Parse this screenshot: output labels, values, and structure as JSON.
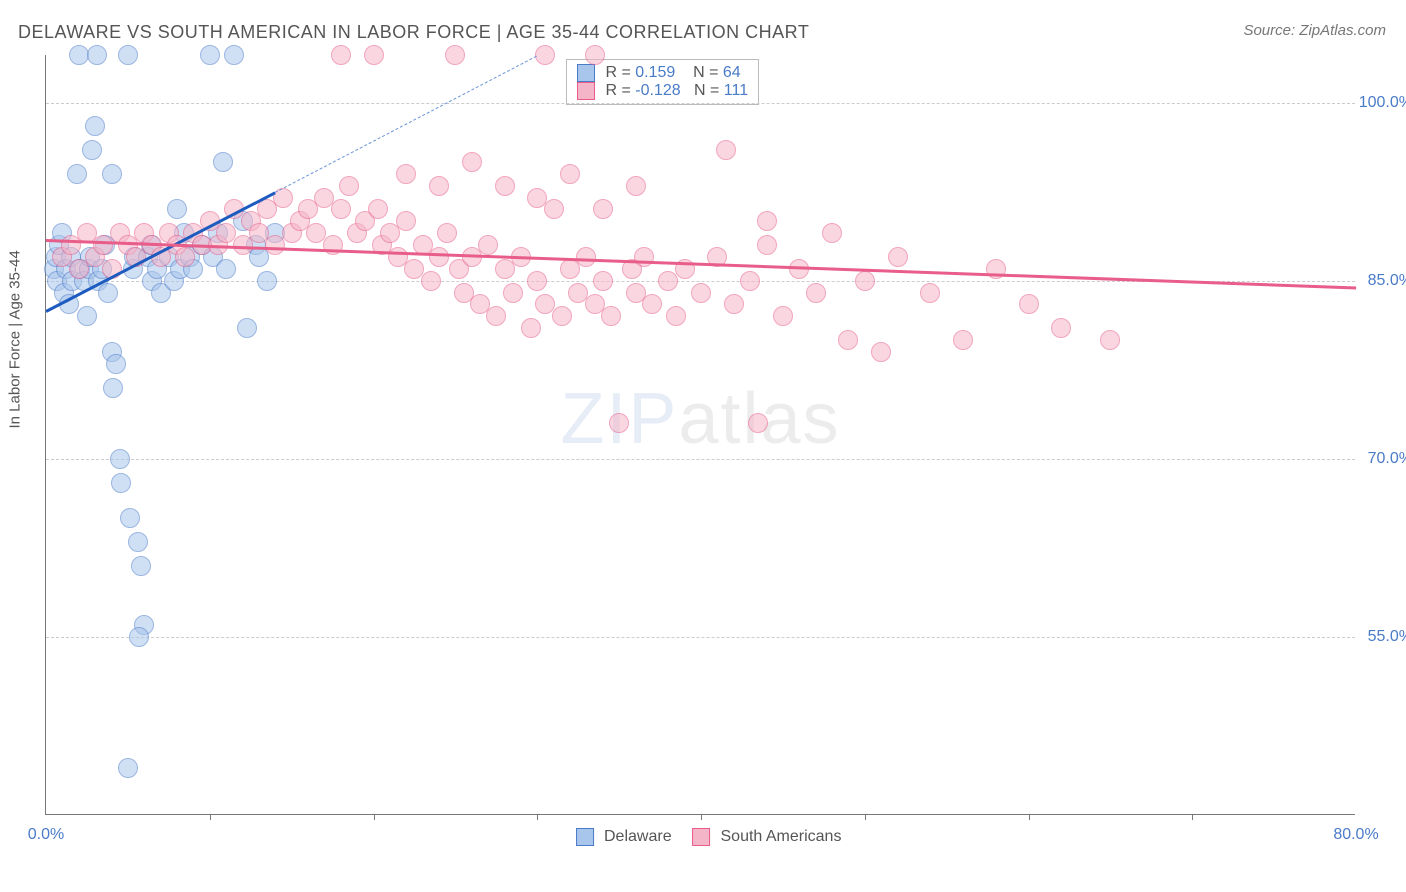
{
  "title": "DELAWARE VS SOUTH AMERICAN IN LABOR FORCE | AGE 35-44 CORRELATION CHART",
  "source": "Source: ZipAtlas.com",
  "ylabel": "In Labor Force | Age 35-44",
  "watermark_bold": "ZIP",
  "watermark_thin": "atlas",
  "chart": {
    "type": "scatter",
    "background_color": "#ffffff",
    "grid_color": "#cccccc",
    "grid_dash": "4,4",
    "axis_color": "#777777",
    "tick_label_color": "#4a7bc8",
    "tick_fontsize": 16,
    "xlim": [
      0,
      80
    ],
    "ylim": [
      40,
      104
    ],
    "xticks": [
      0,
      80
    ],
    "xticks_minor": [
      10,
      20,
      30,
      40,
      50,
      60,
      70
    ],
    "yticks": [
      55,
      70,
      85,
      100
    ],
    "ytick_labels": [
      "55.0%",
      "70.0%",
      "85.0%",
      "100.0%"
    ],
    "xtick_labels": [
      "0.0%",
      "80.0%"
    ],
    "marker_radius": 10,
    "marker_opacity": 0.55,
    "series": [
      {
        "name": "Delaware",
        "fill": "#a8c5ec",
        "stroke": "#4a7bc8",
        "r_value": "0.159",
        "n_value": "64",
        "trend": {
          "x1": 0,
          "y1": 82.5,
          "x2": 14,
          "y2": 92.5,
          "color": "#1e5bbf",
          "width": 3,
          "dash": "none"
        },
        "trend_ext": {
          "x1": 14,
          "y1": 92.5,
          "x2": 30,
          "y2": 104,
          "color": "#6a96d8",
          "width": 1.5,
          "dash": "6,5"
        },
        "points": [
          [
            0.5,
            86
          ],
          [
            0.6,
            87
          ],
          [
            0.7,
            85
          ],
          [
            0.8,
            88
          ],
          [
            1.0,
            89
          ],
          [
            1.1,
            84
          ],
          [
            1.2,
            86
          ],
          [
            1.4,
            83
          ],
          [
            1.5,
            87
          ],
          [
            1.6,
            85
          ],
          [
            1.9,
            94
          ],
          [
            2.0,
            104
          ],
          [
            2.1,
            86
          ],
          [
            2.3,
            85
          ],
          [
            2.5,
            82
          ],
          [
            2.6,
            86
          ],
          [
            2.7,
            87
          ],
          [
            3.0,
            98
          ],
          [
            3.1,
            104
          ],
          [
            3.2,
            85
          ],
          [
            3.4,
            86
          ],
          [
            3.6,
            88
          ],
          [
            3.8,
            84
          ],
          [
            4.0,
            79
          ],
          [
            4.1,
            76
          ],
          [
            4.3,
            78
          ],
          [
            4.5,
            70
          ],
          [
            4.6,
            68
          ],
          [
            5.0,
            104
          ],
          [
            5.1,
            65
          ],
          [
            5.3,
            86
          ],
          [
            5.4,
            87
          ],
          [
            5.6,
            63
          ],
          [
            5.8,
            61
          ],
          [
            6.0,
            56
          ],
          [
            6.2,
            87
          ],
          [
            6.4,
            88
          ],
          [
            6.5,
            85
          ],
          [
            6.8,
            86
          ],
          [
            7.0,
            84
          ],
          [
            7.5,
            87
          ],
          [
            7.8,
            85
          ],
          [
            8.0,
            91
          ],
          [
            8.2,
            86
          ],
          [
            8.4,
            89
          ],
          [
            8.8,
            87
          ],
          [
            9.0,
            86
          ],
          [
            9.5,
            88
          ],
          [
            10.0,
            104
          ],
          [
            10.2,
            87
          ],
          [
            10.5,
            89
          ],
          [
            10.8,
            95
          ],
          [
            11.0,
            86
          ],
          [
            11.5,
            104
          ],
          [
            12.0,
            90
          ],
          [
            12.3,
            81
          ],
          [
            12.8,
            88
          ],
          [
            13.0,
            87
          ],
          [
            13.5,
            85
          ],
          [
            14.0,
            89
          ],
          [
            5.0,
            44
          ],
          [
            5.7,
            55
          ],
          [
            4.0,
            94
          ],
          [
            2.8,
            96
          ]
        ]
      },
      {
        "name": "South Americans",
        "fill": "#f5b5c8",
        "stroke": "#e85d8a",
        "r_value": "-0.128",
        "n_value": "111",
        "trend": {
          "x1": 0,
          "y1": 88.5,
          "x2": 80,
          "y2": 84.5,
          "color": "#e85d8a",
          "width": 3,
          "dash": "none"
        },
        "points": [
          [
            1.0,
            87
          ],
          [
            1.5,
            88
          ],
          [
            2.0,
            86
          ],
          [
            2.5,
            89
          ],
          [
            3.0,
            87
          ],
          [
            3.5,
            88
          ],
          [
            4.0,
            86
          ],
          [
            4.5,
            89
          ],
          [
            5.0,
            88
          ],
          [
            5.5,
            87
          ],
          [
            6.0,
            89
          ],
          [
            6.5,
            88
          ],
          [
            7.0,
            87
          ],
          [
            7.5,
            89
          ],
          [
            8.0,
            88
          ],
          [
            8.5,
            87
          ],
          [
            9.0,
            89
          ],
          [
            9.5,
            88
          ],
          [
            10.0,
            90
          ],
          [
            10.5,
            88
          ],
          [
            11.0,
            89
          ],
          [
            11.5,
            91
          ],
          [
            12.0,
            88
          ],
          [
            12.5,
            90
          ],
          [
            13.0,
            89
          ],
          [
            13.5,
            91
          ],
          [
            14.0,
            88
          ],
          [
            14.5,
            92
          ],
          [
            15.0,
            89
          ],
          [
            15.5,
            90
          ],
          [
            16.0,
            91
          ],
          [
            16.5,
            89
          ],
          [
            17.0,
            92
          ],
          [
            17.5,
            88
          ],
          [
            18.0,
            91
          ],
          [
            18.5,
            93
          ],
          [
            19.0,
            89
          ],
          [
            19.5,
            90
          ],
          [
            20.0,
            104
          ],
          [
            20.3,
            91
          ],
          [
            20.5,
            88
          ],
          [
            21.0,
            89
          ],
          [
            21.5,
            87
          ],
          [
            22.0,
            90
          ],
          [
            22.5,
            86
          ],
          [
            23.0,
            88
          ],
          [
            23.5,
            85
          ],
          [
            24.0,
            87
          ],
          [
            24.5,
            89
          ],
          [
            25.0,
            104
          ],
          [
            25.2,
            86
          ],
          [
            25.5,
            84
          ],
          [
            26.0,
            87
          ],
          [
            26.5,
            83
          ],
          [
            27.0,
            88
          ],
          [
            27.5,
            82
          ],
          [
            28.0,
            86
          ],
          [
            28.5,
            84
          ],
          [
            29.0,
            87
          ],
          [
            29.6,
            81
          ],
          [
            30.0,
            85
          ],
          [
            30.5,
            83
          ],
          [
            31.0,
            91
          ],
          [
            31.5,
            82
          ],
          [
            32.0,
            86
          ],
          [
            32.5,
            84
          ],
          [
            33.0,
            87
          ],
          [
            33.5,
            83
          ],
          [
            34.0,
            85
          ],
          [
            34.5,
            82
          ],
          [
            35.0,
            73
          ],
          [
            35.8,
            86
          ],
          [
            36.0,
            84
          ],
          [
            36.5,
            87
          ],
          [
            37.0,
            83
          ],
          [
            38.0,
            85
          ],
          [
            38.5,
            82
          ],
          [
            39.0,
            86
          ],
          [
            40.0,
            84
          ],
          [
            41.0,
            87
          ],
          [
            41.5,
            96
          ],
          [
            42.0,
            83
          ],
          [
            43.0,
            85
          ],
          [
            43.5,
            73
          ],
          [
            44.0,
            88
          ],
          [
            45.0,
            82
          ],
          [
            46.0,
            86
          ],
          [
            47.0,
            84
          ],
          [
            48.0,
            89
          ],
          [
            49.0,
            80
          ],
          [
            50.0,
            85
          ],
          [
            51.0,
            79
          ],
          [
            52.0,
            87
          ],
          [
            54.0,
            84
          ],
          [
            56.0,
            80
          ],
          [
            58.0,
            86
          ],
          [
            60.0,
            83
          ],
          [
            62.0,
            81
          ],
          [
            65.0,
            80
          ],
          [
            18.0,
            104
          ],
          [
            22.0,
            94
          ],
          [
            24.0,
            93
          ],
          [
            26.0,
            95
          ],
          [
            28.0,
            93
          ],
          [
            30.0,
            92
          ],
          [
            32.0,
            94
          ],
          [
            34.0,
            91
          ],
          [
            36.0,
            93
          ],
          [
            44.0,
            90
          ],
          [
            30.5,
            104
          ],
          [
            33.5,
            104
          ]
        ]
      }
    ]
  },
  "legend_top": {
    "row1_prefix": "R =",
    "row1_mid": "N =",
    "row2_prefix": "R =",
    "row2_mid": "N ="
  },
  "legend_bottom": {
    "label1": "Delaware",
    "label2": "South Americans"
  }
}
